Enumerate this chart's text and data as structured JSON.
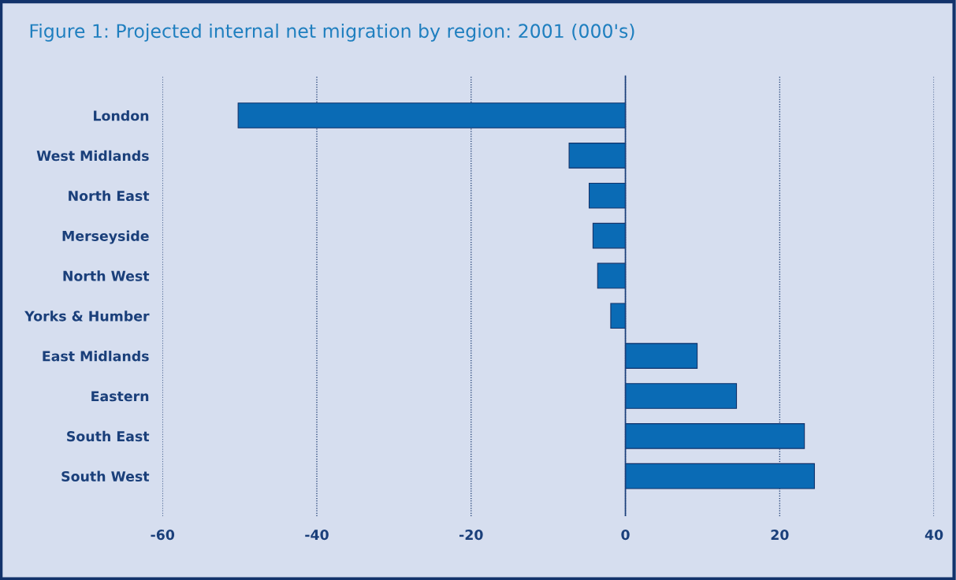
{
  "chart_data": {
    "type": "bar",
    "orientation": "horizontal",
    "title": "Figure 1: Projected internal net migration by region: 2001 (000's)",
    "categories": [
      "London",
      "West Midlands",
      "North East",
      "Merseyside",
      "North West",
      "Yorks & Humber",
      "East Midlands",
      "Eastern",
      "South East",
      "South West"
    ],
    "values": [
      -50.2,
      -7.3,
      -4.7,
      -4.2,
      -3.6,
      -1.9,
      9.3,
      14.4,
      23.2,
      24.5
    ],
    "color": "#0a6bb5",
    "xlim": [
      -60,
      40
    ],
    "xticks": [
      -60,
      -40,
      -20,
      0,
      20,
      40
    ],
    "grid": "x",
    "ref_lines": [
      {
        "axis": "x",
        "value": 0,
        "color": "#1a3f7a",
        "line_style": "solid"
      }
    ]
  }
}
